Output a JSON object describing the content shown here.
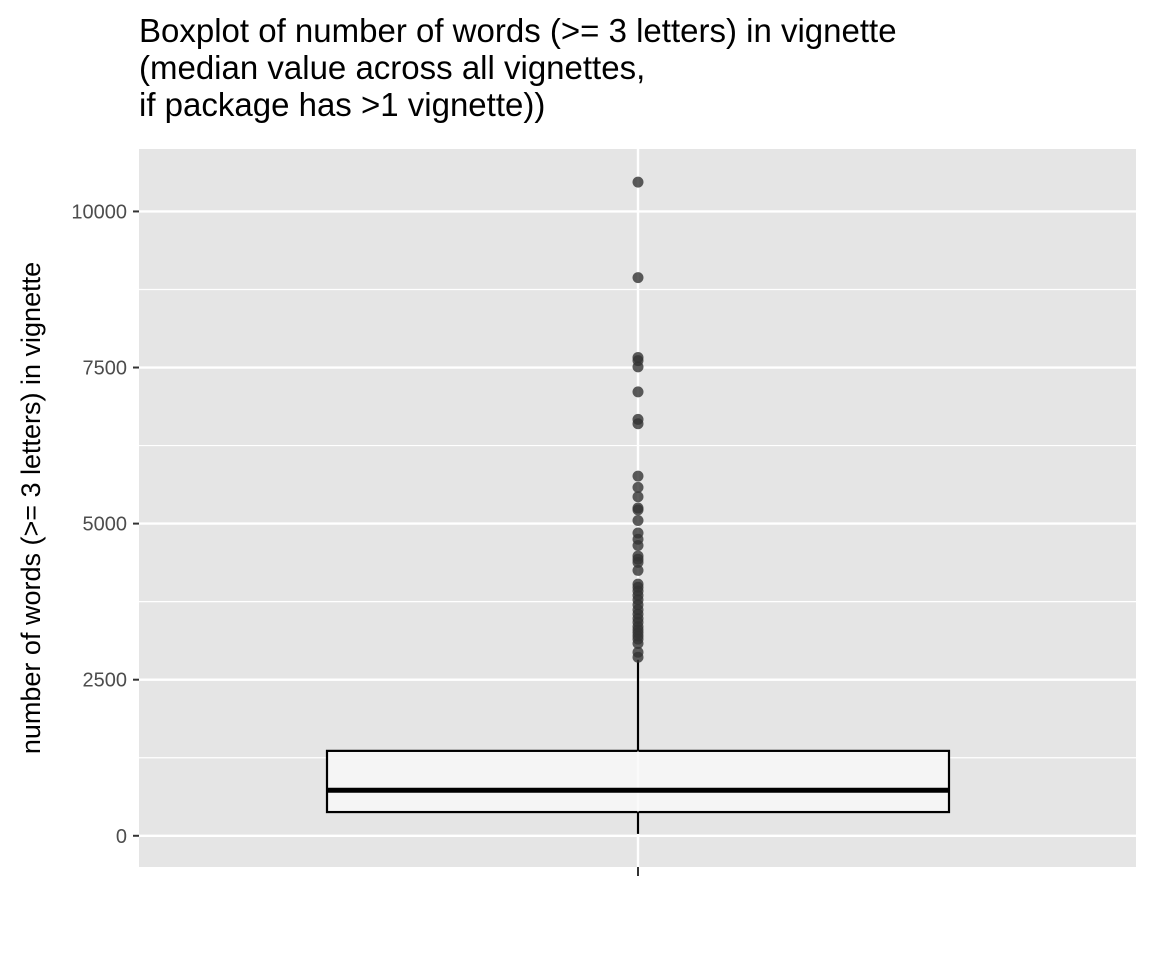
{
  "chart_data": {
    "type": "boxplot",
    "title_lines": [
      "Boxplot of number of words (>= 3 letters) in vignette",
      "(median value across all vignettes,",
      "if package has >1 vignette))"
    ],
    "xlabel": "",
    "ylabel": "number of words (>= 3 letters) in vignette",
    "ylim": [
      -500,
      11000
    ],
    "y_ticks": [
      0,
      2500,
      5000,
      7500,
      10000
    ],
    "y_tick_labels": [
      "0",
      "2500",
      "5000",
      "7500",
      "10000"
    ],
    "y_minor_gridlines": [
      1250,
      3750,
      6250,
      8750
    ],
    "x_ticks": [
      ""
    ],
    "grid": true,
    "box": {
      "whisker_low": 30,
      "q1": 380,
      "median": 730,
      "q3": 1360,
      "whisker_high": 2820
    },
    "outliers": [
      2860,
      2940,
      3080,
      3150,
      3200,
      3250,
      3300,
      3350,
      3420,
      3480,
      3550,
      3620,
      3700,
      3780,
      3850,
      3920,
      3980,
      4030,
      4250,
      4380,
      4430,
      4480,
      4650,
      4750,
      4850,
      5050,
      5220,
      5250,
      5430,
      5580,
      5760,
      6600,
      6670,
      7110,
      7510,
      7610,
      7660,
      8940,
      10470
    ],
    "colors": {
      "panel": "#e5e5e5",
      "gridline": "#ffffff",
      "box_fill": "#f5f5f5",
      "box_stroke": "#000000",
      "outlier": "#333333"
    }
  }
}
